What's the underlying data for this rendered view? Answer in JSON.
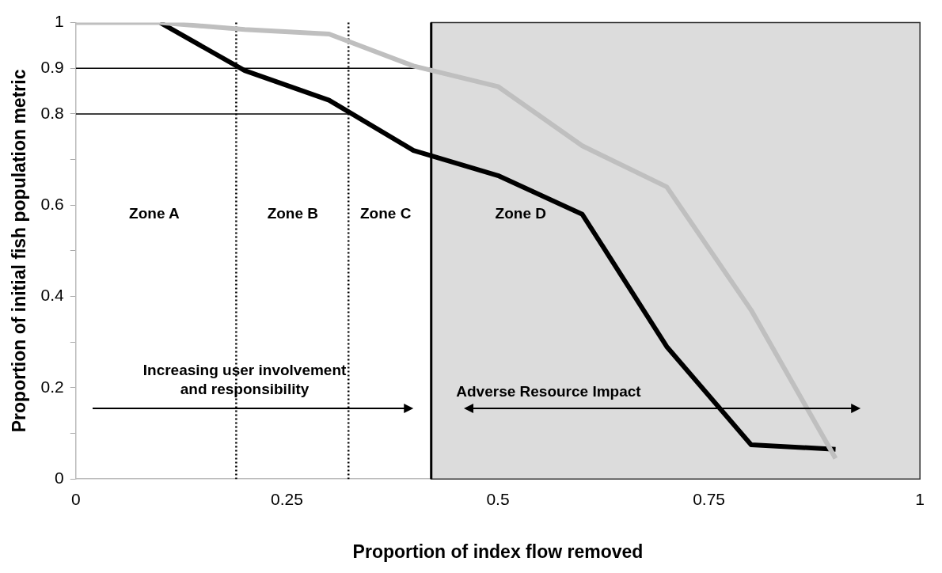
{
  "chart_data": {
    "type": "line",
    "xlabel": "Proportion of index flow removed",
    "ylabel": "Proportion of initial fish population metric",
    "xlim": [
      0,
      1
    ],
    "xticks": [
      0,
      0.25,
      0.5,
      0.75,
      1
    ],
    "ylim": [
      0,
      1
    ],
    "yticks": [
      0,
      {
        "value": 0.1,
        "label": null
      },
      0.2,
      {
        "value": 0.3,
        "label": null
      },
      0.4,
      {
        "value": 0.5,
        "label": null
      },
      0.6,
      {
        "value": 0.7,
        "label": null
      },
      0.8,
      0.9,
      1
    ],
    "grid": false,
    "legend": false,
    "marker": "none",
    "series": [
      {
        "color": "#bfbfbf",
        "x": [
          0,
          0.1,
          0.2,
          0.3,
          0.4,
          0.5,
          0.6,
          0.7,
          0.8,
          0.9
        ],
        "values": [
          1,
          1,
          0.985,
          0.975,
          0.905,
          0.86,
          0.73,
          0.64,
          0.37,
          0.045
        ]
      },
      {
        "color": "#000000",
        "x": [
          0.1,
          0.2,
          0.3,
          0.4,
          0.5,
          0.6,
          0.7,
          0.8,
          0.9
        ],
        "values": [
          1,
          0.895,
          0.83,
          0.72,
          0.665,
          0.58,
          0.29,
          0.075,
          0.065
        ]
      },
      {
        "color": "#000000",
        "x": [
          0,
          0.421
        ],
        "values": [
          0.9,
          0.9
        ]
      },
      {
        "color": "#000000",
        "x": [
          0,
          0.323
        ],
        "values": [
          0.8,
          0.8
        ]
      }
    ],
    "ref_lines": [
      {
        "axis": "x",
        "value": 0.19,
        "color": "#000000",
        "line_style": "dotted"
      },
      {
        "axis": "x",
        "value": 0.323,
        "color": "#000000",
        "line_style": "dotted"
      },
      {
        "axis": "x",
        "value": 0.421,
        "color": "#000000",
        "line_style": "solid"
      }
    ],
    "bands": [
      {
        "axis": "x",
        "from": 0.421,
        "to": 1,
        "color": "#dcdcdc"
      }
    ],
    "annotations": [
      "Zone A",
      "Zone B",
      "Zone C",
      "Zone D",
      "Increasing user involvement\nand responsibility",
      "Adverse Resource Impact"
    ]
  }
}
